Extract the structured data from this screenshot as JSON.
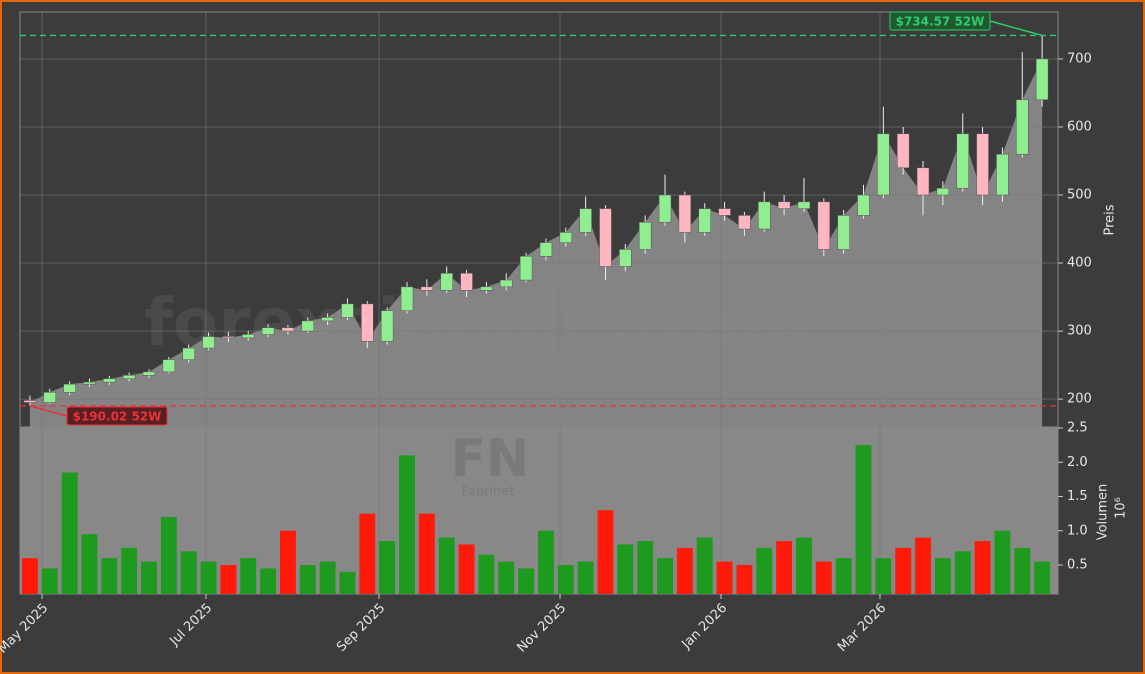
{
  "chart_data": [
    {
      "type": "candlestick",
      "open": [
        198,
        195,
        210,
        222,
        225,
        230,
        235,
        240,
        258,
        275,
        292,
        290,
        295,
        305,
        300,
        315,
        320,
        340,
        285,
        330,
        365,
        360,
        385,
        360,
        365,
        375,
        410,
        430,
        445,
        480,
        395,
        420,
        460,
        500,
        445,
        480,
        470,
        450,
        490,
        480,
        490,
        420,
        470,
        500,
        590,
        540,
        500,
        510,
        590,
        500,
        560,
        640
      ],
      "high": [
        205,
        215,
        226,
        230,
        234,
        239,
        244,
        262,
        280,
        298,
        299,
        300,
        310,
        309,
        320,
        326,
        348,
        344,
        335,
        372,
        376,
        395,
        390,
        372,
        385,
        415,
        436,
        452,
        498,
        485,
        428,
        470,
        530,
        505,
        488,
        490,
        475,
        505,
        500,
        525,
        495,
        478,
        515,
        630,
        600,
        550,
        520,
        620,
        600,
        570,
        710,
        734.57
      ],
      "low": [
        190.02,
        193,
        206,
        218,
        221,
        226,
        231,
        238,
        254,
        272,
        284,
        286,
        291,
        295,
        297,
        309,
        316,
        275,
        280,
        326,
        352,
        356,
        350,
        355,
        360,
        372,
        404,
        424,
        440,
        375,
        388,
        414,
        455,
        430,
        440,
        462,
        440,
        446,
        470,
        475,
        410,
        414,
        465,
        495,
        530,
        470,
        485,
        505,
        485,
        490,
        555,
        630
      ],
      "close": [
        195,
        210,
        222,
        225,
        230,
        235,
        240,
        258,
        275,
        292,
        290,
        295,
        305,
        300,
        315,
        320,
        340,
        285,
        330,
        365,
        360,
        385,
        360,
        365,
        375,
        410,
        430,
        445,
        480,
        395,
        420,
        460,
        500,
        445,
        480,
        470,
        450,
        490,
        480,
        490,
        420,
        470,
        500,
        590,
        540,
        500,
        510,
        590,
        500,
        560,
        640,
        700
      ],
      "up_color": "#90ee90",
      "down_color": "#ffb6c1",
      "area_color": "#888888",
      "xlim": [
        -0.5,
        51.8
      ],
      "xticks": [
        {
          "value": 0.61,
          "label": "May 2025"
        },
        {
          "value": 8.87,
          "label": "Jul 2025"
        },
        {
          "value": 17.59,
          "label": "Sep 2025"
        },
        {
          "value": 26.71,
          "label": "Nov 2025"
        },
        {
          "value": 34.82,
          "label": "Jan 2026"
        },
        {
          "value": 42.83,
          "label": "Mar 2026"
        }
      ],
      "ylim": [
        159,
        769
      ],
      "yticks": [
        200,
        300,
        400,
        500,
        600,
        700
      ],
      "ylabel": "Preis",
      "grid": true,
      "reference_lines": [
        {
          "value": 734.57,
          "label": "$734.57 52W",
          "color": "#2ecc71"
        },
        {
          "value": 190.02,
          "label": "$190.02 52W",
          "color": "#e8323c"
        }
      ],
      "watermark": "forexsignale.trade",
      "symbol": "FN",
      "company": "Fabrinet"
    },
    {
      "type": "bar",
      "values": [
        0.6,
        0.45,
        1.85,
        0.95,
        0.6,
        0.75,
        0.55,
        1.2,
        0.7,
        0.55,
        0.5,
        0.6,
        0.45,
        1.0,
        0.5,
        0.55,
        0.4,
        1.25,
        0.85,
        2.1,
        1.25,
        0.9,
        0.8,
        0.65,
        0.55,
        0.45,
        1.0,
        0.5,
        0.55,
        1.3,
        0.8,
        0.85,
        0.6,
        0.75,
        0.9,
        0.55,
        0.5,
        0.75,
        0.85,
        0.9,
        0.55,
        0.6,
        2.25,
        0.6,
        0.75,
        0.9,
        0.6,
        0.7,
        0.85,
        1.0,
        0.75,
        0.55
      ],
      "up_color": "#1e9a1e",
      "down_color": "#ff1a0a",
      "ylim": [
        0.077,
        2.5
      ],
      "yticks": [
        {
          "value": 0.5,
          "label": "0.5"
        },
        {
          "value": 1.0,
          "label": "1.0"
        },
        {
          "value": 1.5,
          "label": "1.5"
        },
        {
          "value": 2.0,
          "label": "2.0"
        },
        {
          "value": 2.5,
          "label": "2.5"
        }
      ],
      "ylabel": "Volumen",
      "ylabel_exponent": "10⁶"
    }
  ]
}
